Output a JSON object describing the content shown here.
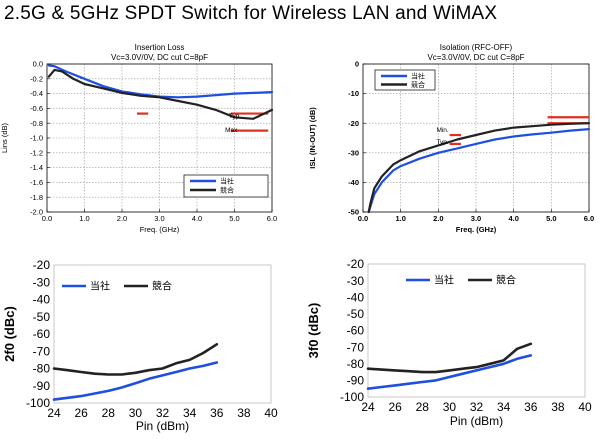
{
  "page": {
    "title": "2.5G & 5GHz SPDT Switch for Wireless LAN and WiMAX"
  },
  "chart_data": [
    {
      "type": "line",
      "title": "Insertion Loss",
      "subtitle": "Vc=3.0V/0V, DC cut C=8pF",
      "xlabel": "Freq. (GHz)",
      "ylabel": "Lins (dB)",
      "xlim": [
        0,
        6
      ],
      "ylim": [
        -2.0,
        0.0
      ],
      "xticks": [
        "0.0",
        "1.0",
        "2.0",
        "3.0",
        "4.0",
        "5.0",
        "6.0"
      ],
      "yticks": [
        "0.0",
        "-0.2",
        "-0.4",
        "-0.6",
        "-0.8",
        "-1.0",
        "-1.2",
        "-1.4",
        "-1.6",
        "-1.8",
        "-2.0"
      ],
      "grid": true,
      "legend_position": "bottom-right",
      "series": [
        {
          "name": "当社",
          "color": "#1f4fe0",
          "x": [
            0.05,
            0.2,
            0.5,
            1.0,
            1.5,
            2.0,
            2.5,
            3.0,
            3.5,
            4.0,
            4.5,
            5.0,
            5.5,
            6.0
          ],
          "values": [
            -0.02,
            -0.03,
            -0.1,
            -0.2,
            -0.3,
            -0.37,
            -0.41,
            -0.44,
            -0.45,
            -0.44,
            -0.42,
            -0.4,
            -0.39,
            -0.38
          ]
        },
        {
          "name": "競合",
          "color": "#222222",
          "x": [
            0.05,
            0.2,
            0.4,
            0.7,
            1.0,
            1.5,
            2.0,
            2.5,
            3.0,
            3.5,
            4.0,
            4.5,
            5.0,
            5.5,
            6.0
          ],
          "values": [
            -0.17,
            -0.08,
            -0.1,
            -0.2,
            -0.27,
            -0.33,
            -0.39,
            -0.43,
            -0.45,
            -0.5,
            -0.55,
            -0.62,
            -0.72,
            -0.74,
            -0.62
          ]
        }
      ],
      "spec_marks": [
        {
          "x0": 2.4,
          "x1": 2.7,
          "y": -0.42,
          "color": "#e03020"
        },
        {
          "x0": 2.4,
          "x1": 2.7,
          "y": -0.67,
          "color": "#e03020"
        },
        {
          "x0": 4.9,
          "x1": 5.9,
          "y": -0.67,
          "color": "#e03020"
        },
        {
          "x0": 4.9,
          "x1": 5.9,
          "y": -0.9,
          "color": "#e03020"
        }
      ],
      "annotations": [
        {
          "text": "Typ.",
          "x": 4.85,
          "y": -0.73
        },
        {
          "text": "Max",
          "x": 4.75,
          "y": -0.92
        }
      ]
    },
    {
      "type": "line",
      "title": "Isolation (RFC-OFF)",
      "subtitle": "Vc=3.0V/0V, DC cut C=8pF",
      "xlabel": "Freq. (GHz)",
      "ylabel": "ISL (IN-OUT) (dB)",
      "xlim": [
        0,
        6
      ],
      "ylim": [
        -50,
        0
      ],
      "xticks": [
        "0.0",
        "1.0",
        "2.0",
        "3.0",
        "4.0",
        "5.0",
        "6.0"
      ],
      "yticks": [
        "0",
        "-10",
        "-20",
        "-30",
        "-40",
        "-50"
      ],
      "grid": true,
      "legend_position": "top-left",
      "series": [
        {
          "name": "当社",
          "color": "#1f4fe0",
          "x": [
            0.15,
            0.2,
            0.3,
            0.5,
            0.8,
            1.0,
            1.5,
            2.0,
            2.5,
            3.0,
            3.5,
            4.0,
            4.5,
            5.0,
            5.5,
            6.0
          ],
          "values": [
            -50,
            -48,
            -44,
            -40,
            -36,
            -34.5,
            -32,
            -30,
            -28.5,
            -27,
            -25.5,
            -24.5,
            -23.8,
            -23.2,
            -22.5,
            -22
          ]
        },
        {
          "name": "競合",
          "color": "#222222",
          "x": [
            0.15,
            0.2,
            0.3,
            0.5,
            0.8,
            1.0,
            1.5,
            2.0,
            2.5,
            3.0,
            3.5,
            4.0,
            4.5,
            5.0,
            5.5,
            6.0
          ],
          "values": [
            -50,
            -47,
            -42,
            -38,
            -34,
            -32.5,
            -29.5,
            -27.5,
            -25.5,
            -24,
            -22.5,
            -21.5,
            -21,
            -20.5,
            -20.2,
            -20
          ]
        }
      ],
      "spec_marks": [
        {
          "x0": 2.3,
          "x1": 2.6,
          "y": -24,
          "color": "#e03020"
        },
        {
          "x0": 2.3,
          "x1": 2.6,
          "y": -27,
          "color": "#e03020"
        },
        {
          "x0": 4.9,
          "x1": 6.0,
          "y": -18,
          "color": "#e03020"
        },
        {
          "x0": 4.9,
          "x1": 6.0,
          "y": -20,
          "color": "#e03020"
        }
      ],
      "annotations": [
        {
          "text": "Min.",
          "x": 1.95,
          "y": -23
        },
        {
          "text": "Typ.",
          "x": 1.95,
          "y": -27
        }
      ]
    },
    {
      "type": "line",
      "title": "",
      "xlabel": "Pin (dBm)",
      "ylabel": "2f0 (dBc)",
      "xlim": [
        24,
        40
      ],
      "ylim": [
        -100,
        -20
      ],
      "xticks": [
        "24",
        "26",
        "28",
        "30",
        "32",
        "34",
        "36",
        "38",
        "40"
      ],
      "yticks": [
        "-20",
        "-30",
        "-40",
        "-50",
        "-60",
        "-70",
        "-80",
        "-90",
        "-100"
      ],
      "grid": false,
      "legend_position": "top-left",
      "series": [
        {
          "name": "当社",
          "color": "#1f4fe0",
          "x": [
            24,
            25,
            26,
            27,
            28,
            29,
            30,
            31,
            32,
            33,
            34,
            35,
            36
          ],
          "values": [
            -98,
            -97,
            -96,
            -94.5,
            -93,
            -91,
            -88.5,
            -86,
            -84,
            -82,
            -80,
            -78.5,
            -76.5
          ]
        },
        {
          "name": "競合",
          "color": "#222222",
          "x": [
            24,
            25,
            26,
            27,
            28,
            29,
            30,
            31,
            32,
            33,
            34,
            35,
            36
          ],
          "values": [
            -80,
            -81,
            -82,
            -83,
            -83.5,
            -83.5,
            -82.5,
            -81,
            -80,
            -77,
            -75,
            -71,
            -66
          ]
        }
      ]
    },
    {
      "type": "line",
      "title": "",
      "xlabel": "Pin (dBm)",
      "ylabel": "3f0 (dBc)",
      "xlim": [
        24,
        40
      ],
      "ylim": [
        -100,
        -20
      ],
      "xticks": [
        "24",
        "26",
        "28",
        "30",
        "32",
        "34",
        "36",
        "38",
        "40"
      ],
      "yticks": [
        "-20",
        "-30",
        "-40",
        "-50",
        "-60",
        "-70",
        "-80",
        "-90",
        "-100"
      ],
      "grid": false,
      "legend_position": "top-center",
      "series": [
        {
          "name": "当社",
          "color": "#1f4fe0",
          "x": [
            24,
            25,
            26,
            27,
            28,
            29,
            30,
            31,
            32,
            33,
            34,
            35,
            36
          ],
          "values": [
            -95,
            -94,
            -93,
            -92,
            -91,
            -90,
            -88,
            -86,
            -84,
            -82,
            -80,
            -77,
            -75
          ]
        },
        {
          "name": "競合",
          "color": "#222222",
          "x": [
            24,
            25,
            26,
            27,
            28,
            29,
            30,
            31,
            32,
            33,
            34,
            35,
            36
          ],
          "values": [
            -83,
            -83.5,
            -84,
            -84.5,
            -85,
            -85,
            -84,
            -83,
            -82,
            -80,
            -78,
            -71,
            -68
          ]
        }
      ]
    }
  ]
}
